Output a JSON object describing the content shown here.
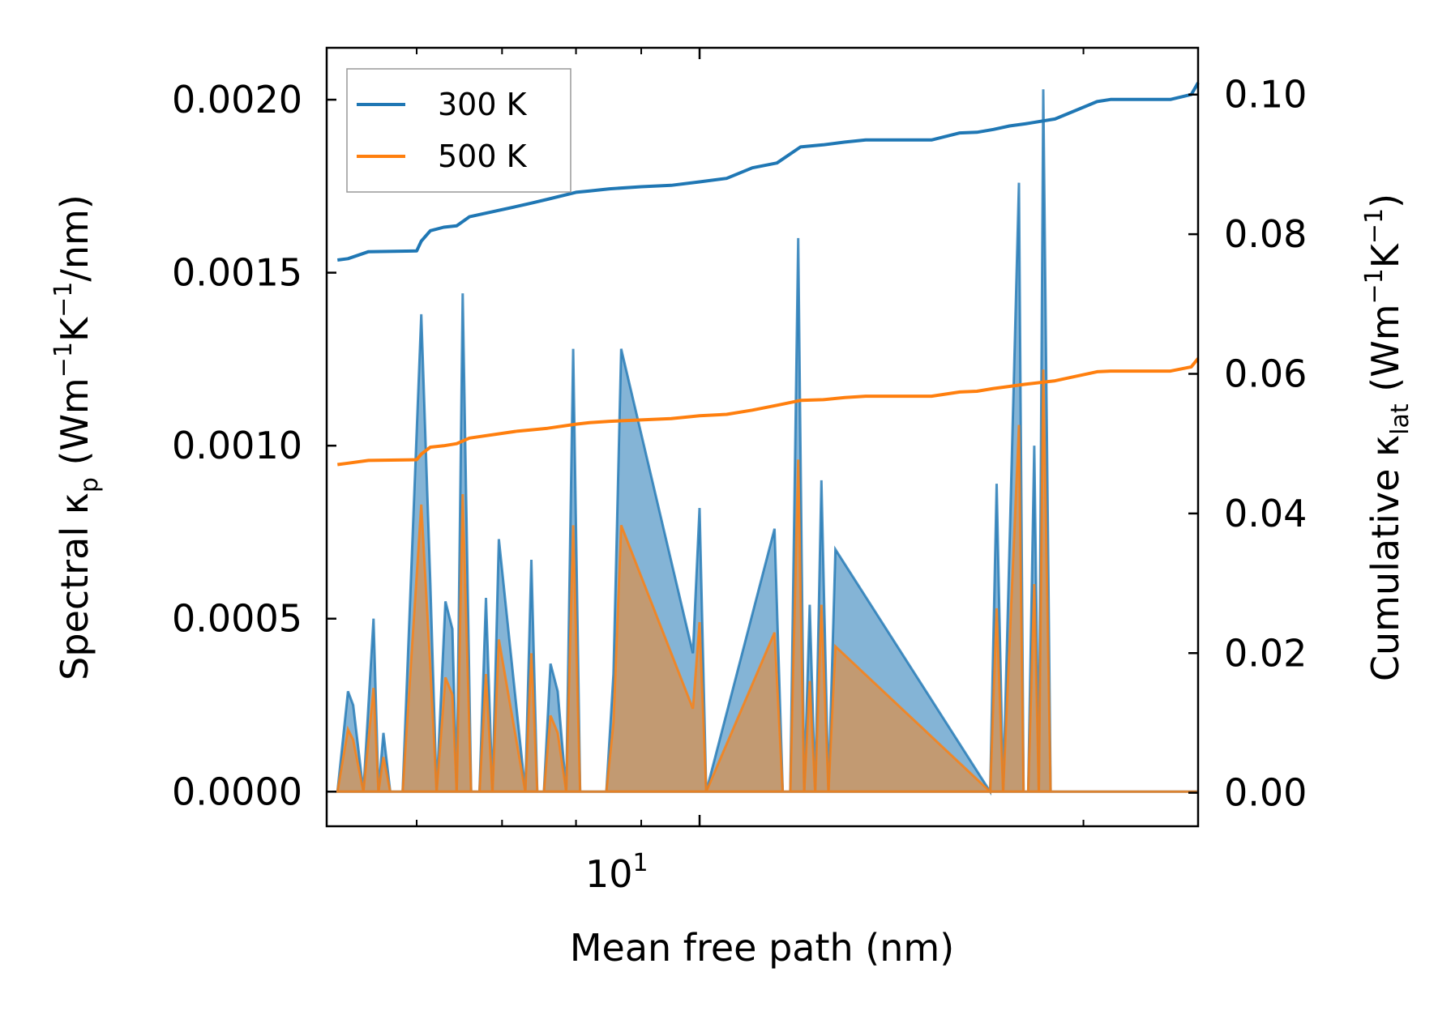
{
  "chart_data": {
    "type": "line",
    "xlabel": "Mean free path (nm)",
    "x_scale": "log",
    "xlim": [
      5.1,
      24.6
    ],
    "x_tick_label": {
      "value": 10,
      "base": "10",
      "exponent": "1"
    },
    "ylabel_left": {
      "pre": "Spectral κ",
      "sub": "p",
      "mid1": " (Wm",
      "sup1": "−1",
      "mid2": "K",
      "sup2": "−1",
      "post": "/nm)"
    },
    "ylabel_right": {
      "pre": "Cumulative κ",
      "sub": "lat",
      "mid1": " (Wm",
      "sup1": "−1",
      "mid2": "K",
      "sup2": "−1",
      "post": ")"
    },
    "ylim_left": [
      -0.0001,
      0.00215
    ],
    "ylim_right": [
      -0.0048,
      0.1067
    ],
    "yticks_left": [
      "0.0000",
      "0.0005",
      "0.0010",
      "0.0015",
      "0.0020"
    ],
    "yticks_left_values": [
      0,
      0.0005,
      0.001,
      0.0015,
      0.002
    ],
    "yticks_right": [
      "0.00",
      "0.02",
      "0.04",
      "0.06",
      "0.08",
      "0.10"
    ],
    "yticks_right_values": [
      0,
      0.02,
      0.04,
      0.06,
      0.08,
      0.1
    ],
    "legend": {
      "position": "upper-left",
      "entries": [
        "300 K",
        "500 K"
      ]
    },
    "colors": {
      "s300": "#1f77b4",
      "s500": "#ff7f0e",
      "overlap": "#c8a06a"
    },
    "series": [
      {
        "name": "300 K",
        "color": "#1f77b4",
        "spectral": {
          "x": [
            5.2,
            5.3,
            5.35,
            5.45,
            5.55,
            5.6,
            5.65,
            5.72,
            5.78,
            5.85,
            6.05,
            6.15,
            6.22,
            6.32,
            6.4,
            6.45,
            6.52,
            6.62,
            6.72,
            6.8,
            6.88,
            6.96,
            7.3,
            7.38,
            7.46,
            7.55,
            7.64,
            7.74,
            7.86,
            7.96,
            8.06,
            8.45,
            8.56,
            8.68,
            9.88,
            10.0,
            10.12,
            11.45,
            11.62,
            11.78,
            11.95,
            12.08,
            12.2,
            12.32,
            12.46,
            12.62,
            12.78,
            16.9,
            17.1,
            17.3,
            17.8,
            17.95,
            18.1,
            18.3,
            18.45,
            18.6,
            18.85,
            19.0,
            19.2,
            20.3,
            20.5,
            20.6,
            20.75,
            20.92,
            23.4,
            23.55,
            23.7,
            24.0,
            24.2,
            24.4,
            24.55
          ],
          "y": [
            0,
            0.00029,
            0.00025,
            0,
            0.0005,
            0,
            0.00017,
            0,
            0,
            0,
            0.00138,
            0.0006,
            0,
            0.00055,
            0.00047,
            0,
            0.00144,
            0,
            0,
            0.00056,
            0,
            0.00073,
            0,
            0.00067,
            0,
            0,
            0.00037,
            0.00029,
            0,
            0.00128,
            0,
            0,
            0.00034,
            0.00128,
            0.0004,
            0.00082,
            0,
            0.00076,
            0,
            0,
            0.0016,
            0,
            0.00054,
            0,
            0.0009,
            0,
            0.0007,
            0,
            0.00089,
            0,
            0.00176,
            0,
            0,
            0.001,
            0,
            0.00203,
            0,
            0,
            0,
            0,
            0,
            0,
            0,
            0,
            0,
            0,
            0,
            0,
            0,
            0,
            0
          ]
        },
        "cumulative": {
          "x": [
            5.2,
            5.3,
            5.5,
            6.0,
            6.05,
            6.15,
            6.3,
            6.45,
            6.6,
            7.2,
            7.4,
            7.6,
            8.0,
            8.2,
            8.5,
            9.0,
            9.5,
            10.0,
            10.5,
            11.0,
            11.5,
            12.0,
            12.5,
            13.0,
            13.5,
            15.2,
            16.0,
            16.5,
            17.0,
            17.5,
            18.0,
            19.0,
            20.5,
            21.0,
            22.0,
            23.4,
            24.3,
            24.6
          ],
          "y": [
            0.0763,
            0.0765,
            0.0775,
            0.0776,
            0.079,
            0.0805,
            0.081,
            0.0812,
            0.0825,
            0.084,
            0.0845,
            0.085,
            0.086,
            0.0862,
            0.0865,
            0.0868,
            0.087,
            0.0875,
            0.088,
            0.0895,
            0.0902,
            0.0925,
            0.0928,
            0.0932,
            0.0935,
            0.0935,
            0.0945,
            0.0946,
            0.095,
            0.0955,
            0.0958,
            0.0965,
            0.099,
            0.0993,
            0.0993,
            0.0993,
            0.1,
            0.1017
          ]
        }
      },
      {
        "name": "500 K",
        "color": "#ff7f0e",
        "spectral": {
          "x": [
            5.2,
            5.3,
            5.35,
            5.45,
            5.55,
            5.6,
            5.65,
            5.72,
            5.78,
            5.85,
            6.05,
            6.15,
            6.22,
            6.32,
            6.4,
            6.45,
            6.52,
            6.62,
            6.72,
            6.8,
            6.88,
            6.96,
            7.3,
            7.38,
            7.46,
            7.55,
            7.64,
            7.74,
            7.86,
            7.96,
            8.06,
            8.45,
            8.56,
            8.68,
            9.88,
            10.0,
            10.12,
            11.45,
            11.62,
            11.78,
            11.95,
            12.08,
            12.2,
            12.32,
            12.46,
            12.62,
            12.78,
            16.9,
            17.1,
            17.3,
            17.8,
            17.95,
            18.1,
            18.3,
            18.45,
            18.6,
            18.85,
            19.0,
            19.2,
            20.3,
            20.5,
            20.6,
            20.75,
            20.92,
            23.4,
            23.55,
            23.7,
            24.0,
            24.2,
            24.4,
            24.55
          ],
          "y": [
            0,
            0.00018,
            0.00015,
            0,
            0.0003,
            0,
            0.0001,
            0,
            0,
            0,
            0.00083,
            0.00036,
            0,
            0.00033,
            0.00028,
            0,
            0.00086,
            0,
            0,
            0.00034,
            0,
            0.00044,
            0,
            0.0004,
            0,
            0,
            0.00022,
            0.00017,
            0,
            0.00077,
            0,
            0,
            0.0002,
            0.00077,
            0.00024,
            0.00049,
            0,
            0.00046,
            0,
            0,
            0.00096,
            0,
            0.00032,
            0,
            0.00054,
            0,
            0.00042,
            0,
            0.00053,
            0,
            0.00106,
            0,
            0,
            0.0006,
            0,
            0.00122,
            0,
            0,
            0,
            0,
            0,
            0,
            0,
            0,
            0,
            0,
            0,
            0,
            0,
            0,
            0
          ]
        },
        "cumulative": {
          "x": [
            5.2,
            5.3,
            5.5,
            6.0,
            6.05,
            6.15,
            6.3,
            6.45,
            6.6,
            7.2,
            7.4,
            7.6,
            8.0,
            8.2,
            8.5,
            9.0,
            9.5,
            10.0,
            10.5,
            11.0,
            11.5,
            12.0,
            12.5,
            13.0,
            13.5,
            15.2,
            16.0,
            16.5,
            17.0,
            17.5,
            18.0,
            19.0,
            20.5,
            21.0,
            22.0,
            23.4,
            24.3,
            24.6
          ],
          "y": [
            0.047,
            0.0472,
            0.0476,
            0.0477,
            0.0485,
            0.0495,
            0.0497,
            0.05,
            0.0508,
            0.0518,
            0.052,
            0.0522,
            0.0528,
            0.053,
            0.0532,
            0.0534,
            0.0536,
            0.054,
            0.0542,
            0.0548,
            0.0555,
            0.0562,
            0.0563,
            0.0566,
            0.0568,
            0.0568,
            0.0574,
            0.0575,
            0.0579,
            0.0582,
            0.0585,
            0.059,
            0.0603,
            0.0604,
            0.0604,
            0.0604,
            0.061,
            0.0622
          ]
        }
      }
    ]
  }
}
